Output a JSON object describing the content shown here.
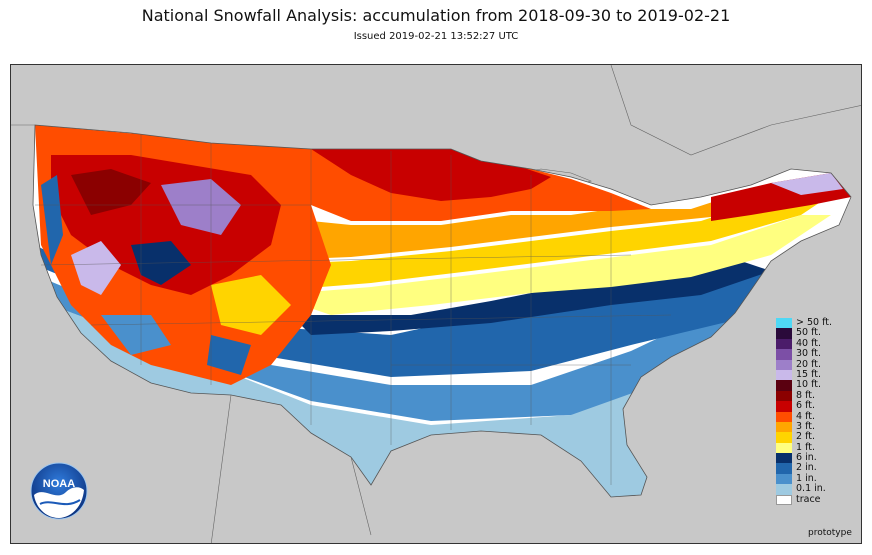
{
  "title": "National Snowfall Analysis: accumulation from 2018-09-30 to 2019-02-21",
  "subtitle": "Issued 2019-02-21 13:52:27 UTC",
  "legend": [
    {
      "label": "> 50 ft.",
      "color": "#4fd8f5"
    },
    {
      "label": "50 ft.",
      "color": "#2a0a3a"
    },
    {
      "label": "40 ft.",
      "color": "#4b1c6a"
    },
    {
      "label": "30 ft.",
      "color": "#7c4fa6"
    },
    {
      "label": "20 ft.",
      "color": "#9d7fc9"
    },
    {
      "label": "15 ft.",
      "color": "#c9b9ea"
    },
    {
      "label": "10 ft.",
      "color": "#5a0010"
    },
    {
      "label": "8 ft.",
      "color": "#8b0000"
    },
    {
      "label": "6 ft.",
      "color": "#c80000"
    },
    {
      "label": "4 ft.",
      "color": "#ff4d00"
    },
    {
      "label": "3 ft.",
      "color": "#ffa500"
    },
    {
      "label": "2 ft.",
      "color": "#ffd400"
    },
    {
      "label": "1 ft.",
      "color": "#ffff80"
    },
    {
      "label": "6 in.",
      "color": "#08306b"
    },
    {
      "label": "2 in.",
      "color": "#2166ac"
    },
    {
      "label": "1 in.",
      "color": "#4a90cc"
    },
    {
      "label": "0.1 in.",
      "color": "#9ecae1"
    },
    {
      "label": "trace",
      "color": "#ffffff"
    }
  ],
  "logo_text": "NOAA",
  "footer_note": "prototype",
  "colors": {
    "background_land": "#c8c8c8",
    "borders": "#555555"
  }
}
